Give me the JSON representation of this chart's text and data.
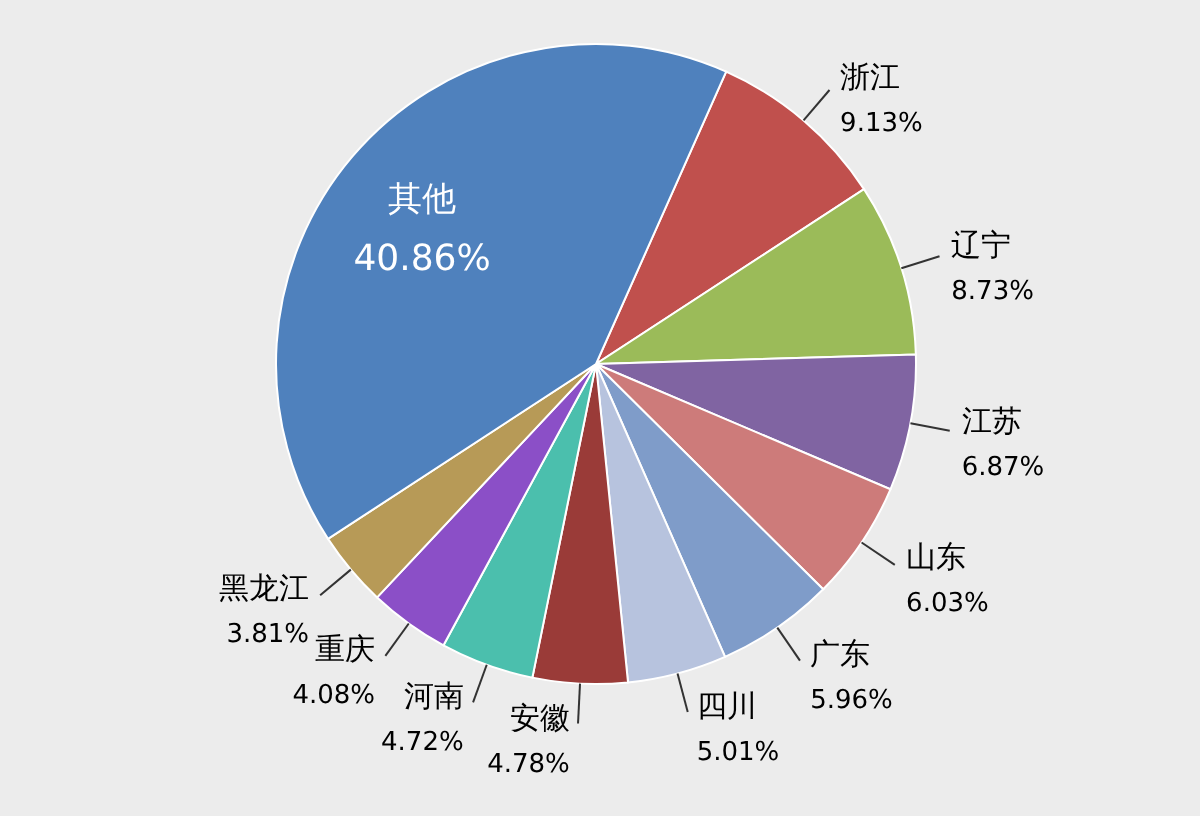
{
  "chart_data": {
    "type": "pie",
    "categories": [
      "浙江",
      "辽宁",
      "江苏",
      "山东",
      "广东",
      "四川",
      "安徽",
      "河南",
      "重庆",
      "黑龙江",
      "其他"
    ],
    "values": [
      9.13,
      8.73,
      6.87,
      6.03,
      5.96,
      5.01,
      4.78,
      4.72,
      4.08,
      3.81,
      40.86
    ],
    "value_labels": [
      "9.13%",
      "8.73%",
      "6.87%",
      "6.03%",
      "5.96%",
      "5.01%",
      "4.78%",
      "4.72%",
      "4.08%",
      "3.81%",
      "40.86%"
    ],
    "colors": [
      "#c0504d",
      "#9bbb59",
      "#8064a2",
      "#cd7b7a",
      "#7f9cc9",
      "#b7c3de",
      "#9a3b38",
      "#4bbfad",
      "#8b4fc7",
      "#b79a57",
      "#4f81bd"
    ]
  }
}
